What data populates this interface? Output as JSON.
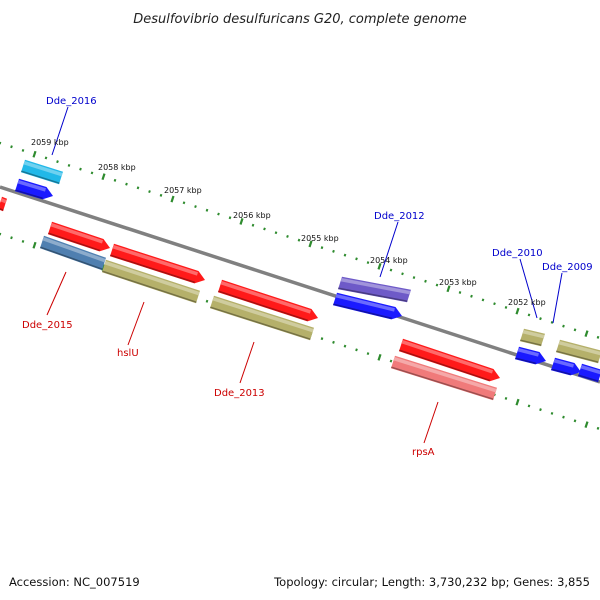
{
  "title": "Desulfovibrio desulfuricans G20, complete genome",
  "footer": {
    "accession": "Accession: NC_007519",
    "summary": "Topology: circular; Length: 3,730,232 bp; Genes: 3,855"
  },
  "colors": {
    "backbone": "#808080",
    "tick_track": "#2e8b2e",
    "label_forward": "#0000cc",
    "label_reverse": "#cc0000",
    "gene_red": "#ff1a1a",
    "gene_blue": "#1a1aff",
    "gene_olive": "#b5b06a",
    "gene_steel": "#4f7fb0",
    "gene_cyan": "#22b8e8",
    "gene_purple": "#6e5ac8",
    "gene_salmon": "#f07a7a"
  },
  "scale": {
    "unit": "kbp",
    "labels": [
      "2059 kbp",
      "2058 kbp",
      "2057 kbp",
      "2056 kbp",
      "2055 kbp",
      "2054 kbp",
      "2053 kbp",
      "2052 kbp"
    ]
  },
  "gene_labels": [
    {
      "text": "Dde_2016",
      "strand": "forward"
    },
    {
      "text": "Dde_2012",
      "strand": "forward"
    },
    {
      "text": "Dde_2010",
      "strand": "forward"
    },
    {
      "text": "Dde_2009",
      "strand": "forward"
    },
    {
      "text": "Dde_2015",
      "strand": "reverse"
    },
    {
      "text": "hslU",
      "strand": "reverse"
    },
    {
      "text": "Dde_2013",
      "strand": "reverse"
    },
    {
      "text": "rpsA",
      "strand": "reverse"
    }
  ]
}
